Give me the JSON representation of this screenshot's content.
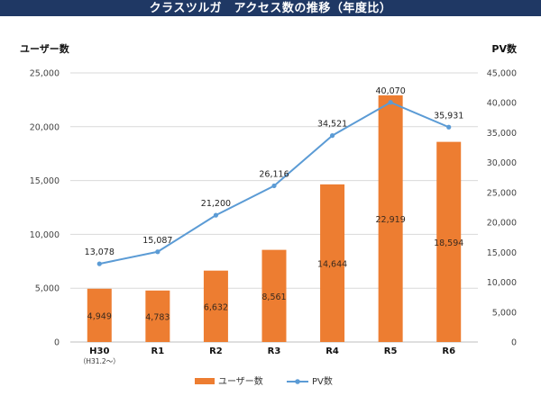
{
  "colors": {
    "title_bg": "#1f3864",
    "bar": "#ed7d31",
    "line": "#5b9bd5",
    "grid": "#d9d9d9"
  },
  "chart_data": {
    "type": "bar+line",
    "title": "クラスツルガ　アクセス数の推移（年度比）",
    "y_left_label": "ユーザー数",
    "y_right_label": "PV数",
    "ylim_left": [
      0,
      25000
    ],
    "ylim_right": [
      0,
      45000
    ],
    "ticks_left": [
      "0",
      "5,000",
      "10,000",
      "15,000",
      "20,000",
      "25,000"
    ],
    "ticks_right": [
      "0",
      "5,000",
      "10,000",
      "15,000",
      "20,000",
      "25,000",
      "30,000",
      "35,000",
      "40,000",
      "45,000"
    ],
    "categories": [
      "H30",
      "R1",
      "R2",
      "R3",
      "R4",
      "R5",
      "R6"
    ],
    "category_note": "（H31.2～）",
    "series": [
      {
        "name": "ユーザー数",
        "type": "bar",
        "axis": "left",
        "values": [
          4949,
          4783,
          6632,
          8561,
          14644,
          22919,
          18594
        ],
        "labels": [
          "4,949",
          "4,783",
          "6,632",
          "8,561",
          "14,644",
          "22,919",
          "18,594"
        ]
      },
      {
        "name": "PV数",
        "type": "line",
        "axis": "right",
        "values": [
          13078,
          15087,
          21200,
          26116,
          34521,
          40070,
          35931
        ],
        "labels": [
          "13,078",
          "15,087",
          "21,200",
          "26,116",
          "34,521",
          "40,070",
          "35,931"
        ]
      }
    ],
    "legend": {
      "position": "bottom",
      "entries": [
        "ユーザー数",
        "PV数"
      ]
    }
  }
}
